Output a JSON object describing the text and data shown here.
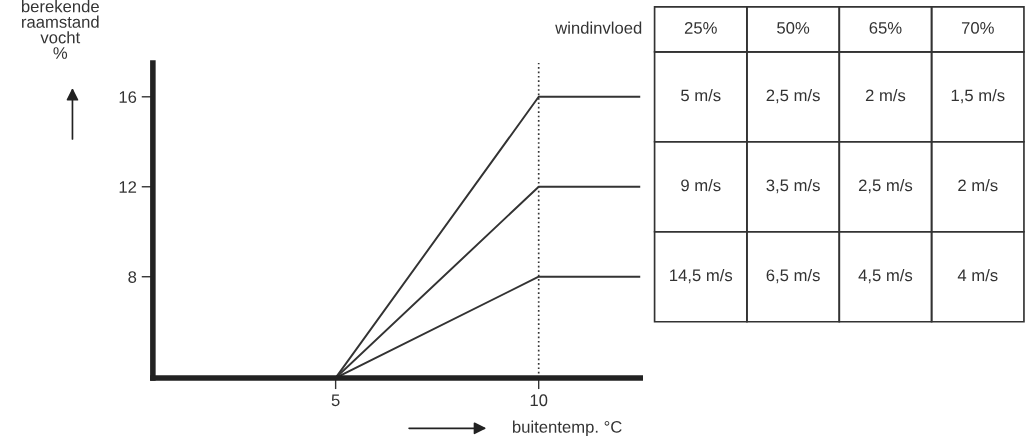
{
  "chart_data": {
    "type": "line",
    "xlabel": "buitentemp. °C",
    "ylabel": "berekende\nraamstand\nvocht\n%",
    "xlim": [
      0.5,
      12.5
    ],
    "xticks": [
      5,
      10
    ],
    "ylim": [
      3.5,
      17.5
    ],
    "yticks": [
      8,
      12,
      16
    ],
    "series": [
      {
        "x": [
          5,
          10,
          12.5
        ],
        "values": [
          3.5,
          16,
          16
        ],
        "color": "#333333"
      },
      {
        "x": [
          5,
          10,
          12.5
        ],
        "values": [
          3.5,
          12,
          12
        ],
        "color": "#333333"
      },
      {
        "x": [
          5,
          10,
          12.5
        ],
        "values": [
          3.5,
          8,
          8
        ],
        "color": "#333333"
      }
    ],
    "ref_lines": [
      {
        "axis": "x",
        "value": 10,
        "color": "#333333",
        "line_style": "dotted"
      }
    ],
    "annotations": [
      "windinvloed",
      "25%",
      "50%",
      "65%",
      "70%",
      "5 m/s",
      "2,5 m/s",
      "2 m/s",
      "1,5 m/s",
      "9 m/s",
      "3,5 m/s",
      "2,5 m/s",
      "2 m/s",
      "14,5 m/s",
      "6,5 m/s",
      "4,5 m/s",
      "4 m/s"
    ],
    "grid": false,
    "legend": false,
    "marker": "none",
    "line_style": "solid"
  }
}
